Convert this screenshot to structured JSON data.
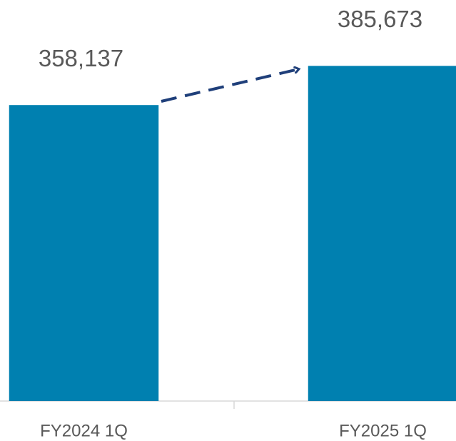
{
  "chart_data": {
    "type": "bar",
    "categories": [
      "FY2024 1Q",
      "FY2025 1Q"
    ],
    "values": [
      358137,
      385673
    ],
    "value_labels": [
      "358,137",
      "385,673"
    ],
    "color": "#0080b0",
    "ylim": [
      150000,
      432000
    ]
  }
}
